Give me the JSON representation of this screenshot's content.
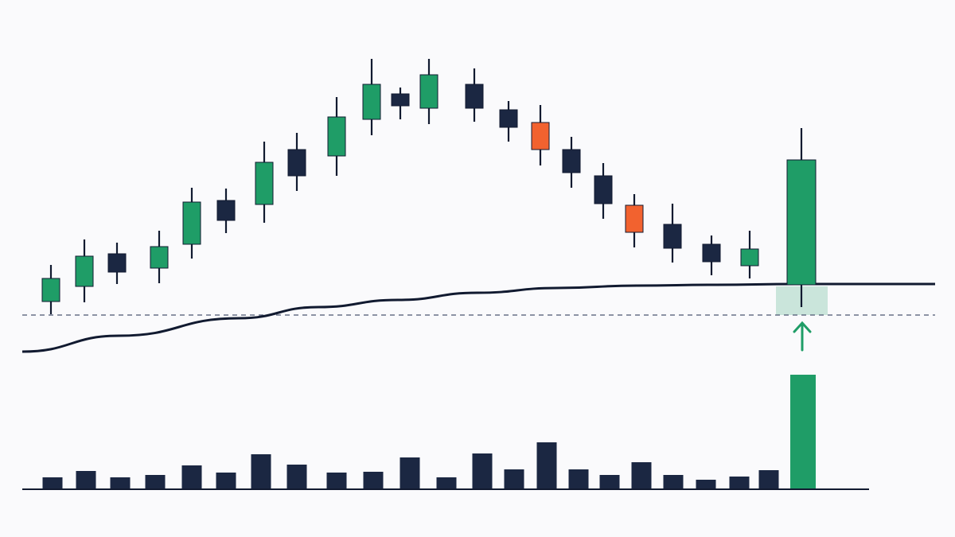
{
  "chart_data": {
    "type": "candlestick",
    "xlim": [
      0,
      1200
    ],
    "ylim": [
      -175,
      500
    ],
    "colors": {
      "up": "#1f9d67",
      "down": "#1b2742",
      "alert": "#f2622f"
    },
    "candles": {
      "x": [
        64,
        106,
        147,
        200,
        241,
        284,
        332,
        373,
        423,
        467,
        503,
        539,
        596,
        639,
        679,
        718,
        758,
        797,
        845,
        894,
        942,
        1007
      ],
      "open": [
        121,
        140,
        181,
        163,
        193,
        248,
        243,
        312,
        304,
        350,
        382,
        364,
        394,
        362,
        346,
        312,
        279,
        242,
        218,
        193,
        166,
        142
      ],
      "high": [
        167,
        199,
        195,
        210,
        264,
        263,
        322,
        333,
        378,
        426,
        390,
        426,
        414,
        373,
        368,
        328,
        295,
        256,
        244,
        204,
        210,
        339
      ],
      "low": [
        105,
        120,
        143,
        144,
        175,
        207,
        220,
        260,
        279,
        330,
        350,
        344,
        347,
        322,
        292,
        264,
        225,
        189,
        170,
        154,
        150,
        114
      ],
      "close": [
        150,
        178,
        158,
        190,
        246,
        223,
        296,
        279,
        353,
        394,
        367,
        406,
        364,
        340,
        312,
        283,
        244,
        208,
        188,
        171,
        187,
        299
      ],
      "kind": [
        "up",
        "up",
        "down",
        "up",
        "up",
        "down",
        "up",
        "down",
        "up",
        "up",
        "down",
        "up",
        "down",
        "down",
        "alert",
        "down",
        "down",
        "alert",
        "down",
        "down",
        "up",
        "up"
      ]
    },
    "moving_average": {
      "x": [
        28,
        150,
        300,
        400,
        500,
        600,
        700,
        800,
        900,
        1000,
        1175
      ],
      "values": [
        58,
        78,
        100,
        114,
        123,
        132,
        138,
        141,
        142,
        143,
        143
      ],
      "color": "#111a30"
    },
    "level": 104,
    "zone": [
      104,
      140
    ],
    "volume": {
      "x": [
        66,
        108,
        151,
        195,
        241,
        284,
        328,
        373,
        423,
        469,
        515,
        561,
        606,
        646,
        687,
        727,
        766,
        806,
        846,
        887,
        929,
        966,
        1009
      ],
      "values": [
        15,
        23,
        15,
        18,
        30,
        21,
        44,
        31,
        21,
        22,
        40,
        15,
        45,
        25,
        59,
        25,
        18,
        34,
        18,
        12,
        16,
        24,
        144
      ],
      "kind": [
        "down",
        "down",
        "down",
        "down",
        "down",
        "down",
        "down",
        "down",
        "down",
        "down",
        "down",
        "down",
        "down",
        "down",
        "down",
        "down",
        "down",
        "down",
        "down",
        "down",
        "down",
        "down",
        "up"
      ],
      "vlim": [
        0,
        615
      ]
    }
  }
}
